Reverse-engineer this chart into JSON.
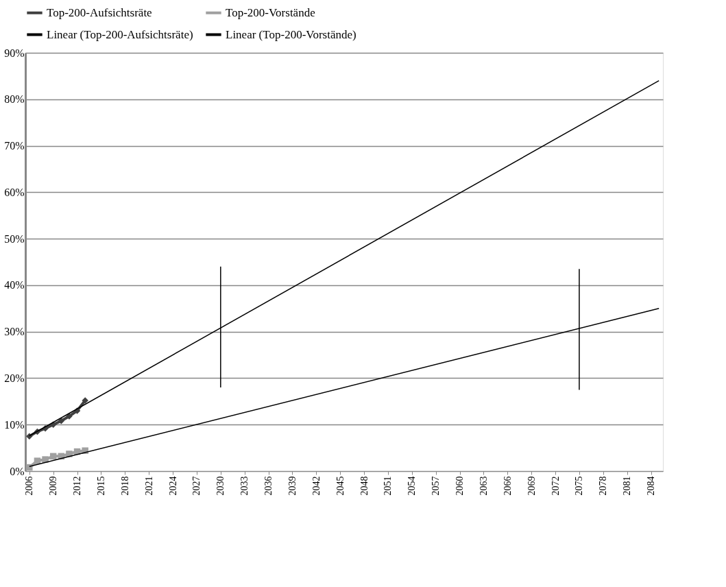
{
  "chart_data": {
    "type": "line",
    "x": [
      2006,
      2007,
      2008,
      2009,
      2010,
      2011,
      2012,
      2013
    ],
    "series": [
      {
        "name": "Top-200-Aufsichtsräte",
        "color": "#404040",
        "marker": "diamond",
        "values": [
          7.5,
          8.5,
          9.2,
          10.0,
          10.8,
          11.8,
          13.0,
          15.2
        ]
      },
      {
        "name": "Top-200-Vorstände",
        "color": "#a0a0a0",
        "marker": "square",
        "values": [
          0.8,
          2.2,
          2.5,
          3.2,
          3.2,
          3.7,
          4.2,
          4.4
        ]
      },
      {
        "name": "Linear (Top-200-Aufsichtsräte)",
        "color": "#000000",
        "marker": "none",
        "x": [
          2006,
          2085
        ],
        "values": [
          7.6,
          84
        ]
      },
      {
        "name": "Linear (Top-200-Vorstände)",
        "color": "#000000",
        "marker": "none",
        "x": [
          2006,
          2085
        ],
        "values": [
          1.0,
          35
        ]
      },
      {
        "color": "#000000",
        "marker": "none",
        "x": [
          2030,
          2030
        ],
        "values": [
          18,
          44
        ]
      },
      {
        "color": "#000000",
        "marker": "none",
        "x": [
          2075,
          2075
        ],
        "values": [
          17.5,
          43.5
        ]
      }
    ],
    "xlim": [
      2005.5,
      2085.5
    ],
    "xticks": [
      2006,
      2009,
      2012,
      2015,
      2018,
      2021,
      2024,
      2027,
      2030,
      2033,
      2036,
      2039,
      2042,
      2045,
      2048,
      2051,
      2054,
      2057,
      2060,
      2063,
      2066,
      2069,
      2072,
      2075,
      2078,
      2081,
      2084
    ],
    "ylim": [
      0,
      90
    ],
    "yticks": [
      {
        "value": 0,
        "label": "0%"
      },
      {
        "value": 10,
        "label": "10%"
      },
      {
        "value": 20,
        "label": "20%"
      },
      {
        "value": 30,
        "label": "30%"
      },
      {
        "value": 40,
        "label": "40%"
      },
      {
        "value": 50,
        "label": "50%"
      },
      {
        "value": 60,
        "label": "60%"
      },
      {
        "value": 70,
        "label": "70%"
      },
      {
        "value": 80,
        "label": "80%"
      },
      {
        "value": 90,
        "label": "90%"
      }
    ],
    "grid": "y",
    "legend": "top",
    "line_style": "solid"
  }
}
